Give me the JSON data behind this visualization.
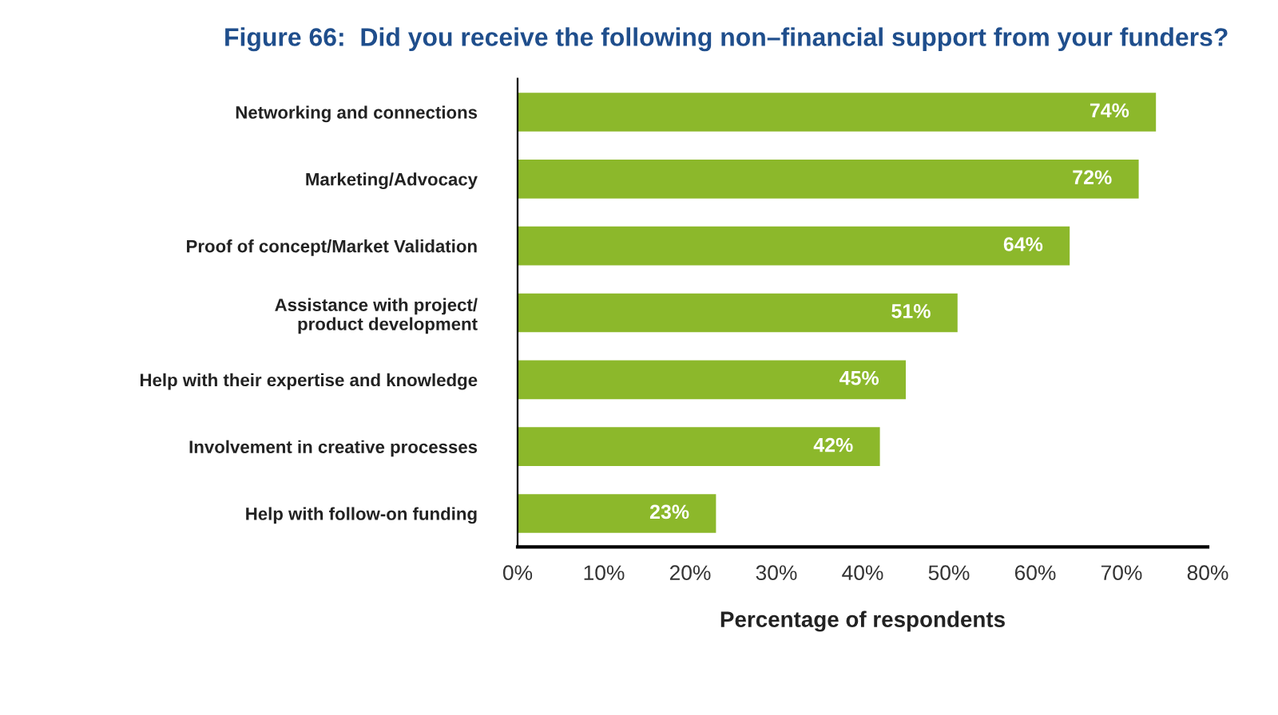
{
  "chart_data": {
    "type": "bar",
    "orientation": "horizontal",
    "title": "Figure 66:  Did you receive the following non–financial support from your funders?",
    "categories": [
      "Networking and connections",
      "Marketing/Advocacy",
      "Proof of concept/Market Validation",
      "Assistance with project/\nproduct development",
      "Help with their expertise and knowledge",
      "Involvement in creative processes",
      "Help with follow-on funding"
    ],
    "values": [
      74,
      72,
      64,
      51,
      45,
      42,
      23
    ],
    "value_labels": [
      "74%",
      "72%",
      "64%",
      "51%",
      "45%",
      "42%",
      "23%"
    ],
    "color": "#8cb82b",
    "xlabel": "Percentage of respondents",
    "xlim": [
      0,
      80
    ],
    "xticks": [
      {
        "value": 0,
        "label": "0%"
      },
      {
        "value": 10,
        "label": "10%"
      },
      {
        "value": 20,
        "label": "20%"
      },
      {
        "value": 30,
        "label": "30%"
      },
      {
        "value": 40,
        "label": "40%"
      },
      {
        "value": 50,
        "label": "50%"
      },
      {
        "value": 60,
        "label": "60%"
      },
      {
        "value": 70,
        "label": "70%"
      },
      {
        "value": 80,
        "label": "80%"
      }
    ],
    "grid": false,
    "legend": false
  }
}
